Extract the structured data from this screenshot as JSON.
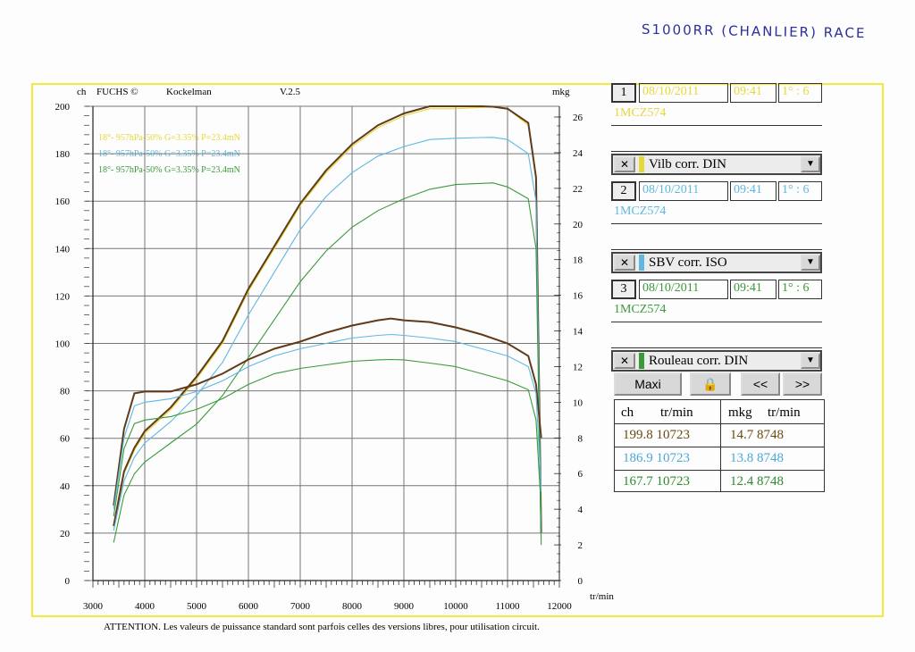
{
  "handwriting": "S1000RR (CHANLIER) RACE",
  "header": {
    "brand": "FUCHS ©",
    "author": "Kockelman",
    "version": "V.2.5",
    "left_unit": "ch",
    "right_unit": "mkg",
    "x_unit": "tr/min"
  },
  "legend": [
    {
      "text": "18°- 957hPa-50% G=3.35% P=23.4mN",
      "color": "#e6d83a"
    },
    {
      "text": "18°- 957hPa-50% G=3.35% P=23.4mN",
      "color": "#5fb8e0"
    },
    {
      "text": "18°- 957hPa-50% G=3.35% P=23.4mN",
      "color": "#3a9a3a"
    }
  ],
  "footer": "ATTENTION. Les valeurs de puissance standard sont parfois celles des versions libres, pour utilisation circuit.",
  "runs": [
    {
      "num": "1",
      "date": "08/10/2011",
      "time": "09:41",
      "ratio": "1° : 6",
      "plate": "1MCZ574",
      "mode": "Vilb corr. DIN",
      "color": "#e6d83a"
    },
    {
      "num": "2",
      "date": "08/10/2011",
      "time": "09:41",
      "ratio": "1° : 6",
      "plate": "1MCZ574",
      "mode": "SBV corr. ISO",
      "color": "#5fb8e0"
    },
    {
      "num": "3",
      "date": "08/10/2011",
      "time": "09:41",
      "ratio": "1° : 6",
      "plate": "1MCZ574",
      "mode": "Rouleau corr. DIN",
      "color": "#3a9a3a"
    }
  ],
  "buttons": {
    "maxi": "Maxi",
    "prev": "<<",
    "next": ">>"
  },
  "results": {
    "headers": [
      "ch",
      "tr/min",
      "mkg",
      "tr/min"
    ],
    "rows": [
      {
        "ch": "199.8",
        "rpm1": "10723",
        "mkg": "14.7",
        "rpm2": "8748",
        "color": "#6b4a10"
      },
      {
        "ch": "186.9",
        "rpm1": "10723",
        "mkg": "13.8",
        "rpm2": "8748",
        "color": "#4aa8d8"
      },
      {
        "ch": "167.7",
        "rpm1": "10723",
        "mkg": "12.4",
        "rpm2": "8748",
        "color": "#2e8a2e"
      }
    ]
  },
  "chart_data": {
    "type": "line",
    "x_ticks": [
      "3000",
      "4000",
      "5000",
      "6000",
      "7000",
      "8000",
      "9000",
      "10000",
      "11000",
      "12000"
    ],
    "y_left_ticks": [
      "0",
      "20",
      "40",
      "60",
      "80",
      "100",
      "120",
      "140",
      "160",
      "180",
      "200"
    ],
    "y_right_ticks": [
      "0",
      "2",
      "4",
      "6",
      "8",
      "10",
      "12",
      "14",
      "16",
      "18",
      "20",
      "22",
      "24",
      "26"
    ],
    "xlim": [
      3000,
      12000
    ],
    "ylim_power": [
      0,
      200
    ],
    "ylim_torque": [
      0,
      26
    ],
    "grid": true,
    "series": [
      {
        "axis": "power",
        "color": "#e6d83a",
        "x": [
          3400,
          3600,
          3800,
          4000,
          4500,
          5000,
          5500,
          6000,
          6500,
          7000,
          7500,
          8000,
          8500,
          9000,
          9500,
          10000,
          10500,
          10723,
          11000,
          11400,
          11550,
          11650
        ],
        "y": [
          22,
          45,
          55,
          62,
          72,
          85,
          100,
          122,
          140,
          158,
          172,
          183,
          191,
          196,
          199,
          199,
          199.5,
          199.8,
          199,
          192,
          170,
          20
        ]
      },
      {
        "axis": "power",
        "color": "#5f3b1a",
        "x": [
          3400,
          3600,
          3800,
          4000,
          4500,
          5000,
          5500,
          6000,
          6500,
          7000,
          7500,
          8000,
          8500,
          9000,
          9500,
          10000,
          10500,
          10723,
          11000,
          11400,
          11550,
          11650
        ],
        "y": [
          23,
          46,
          56,
          63,
          73,
          86,
          101,
          123,
          141,
          159,
          173,
          184,
          192,
          197,
          200,
          200,
          200,
          199.8,
          199,
          193,
          170,
          20
        ]
      },
      {
        "axis": "power",
        "color": "#5fb8e0",
        "x": [
          3400,
          3600,
          3800,
          4000,
          4500,
          5000,
          5500,
          6000,
          6500,
          7000,
          7500,
          8000,
          8500,
          9000,
          9500,
          10000,
          10500,
          10723,
          11000,
          11400,
          11550,
          11650
        ],
        "y": [
          21,
          42,
          52,
          58,
          67,
          78,
          92,
          112,
          130,
          148,
          162,
          172,
          179,
          183,
          186,
          186.5,
          186.8,
          186.9,
          186,
          180,
          160,
          20
        ]
      },
      {
        "axis": "power",
        "color": "#3a9a3a",
        "x": [
          3400,
          3600,
          3800,
          4000,
          4500,
          5000,
          5500,
          6000,
          6500,
          7000,
          7500,
          8000,
          8500,
          9000,
          9500,
          10000,
          10500,
          10723,
          11000,
          11400,
          11550,
          11650
        ],
        "y": [
          16,
          36,
          45,
          50,
          58,
          66,
          78,
          94,
          110,
          126,
          139,
          149,
          156,
          161,
          165,
          167,
          167.5,
          167.7,
          166,
          161,
          140,
          15
        ]
      },
      {
        "axis": "torque",
        "color": "#5f3b1a",
        "x": [
          3400,
          3600,
          3800,
          4000,
          4500,
          5000,
          5500,
          6000,
          6500,
          7000,
          7500,
          8000,
          8500,
          8748,
          9000,
          9500,
          10000,
          10500,
          11000,
          11400,
          11550,
          11650
        ],
        "y": [
          4.2,
          8.5,
          10.5,
          10.6,
          10.6,
          11.0,
          11.6,
          12.4,
          13.0,
          13.4,
          13.9,
          14.3,
          14.6,
          14.7,
          14.6,
          14.5,
          14.2,
          13.8,
          13.3,
          12.6,
          11.0,
          8.0
        ]
      },
      {
        "axis": "torque",
        "color": "#5fb8e0",
        "x": [
          3400,
          3600,
          3800,
          4000,
          4500,
          5000,
          5500,
          6000,
          6500,
          7000,
          7500,
          8000,
          8500,
          8748,
          9000,
          9500,
          10000,
          10500,
          11000,
          11400,
          11550,
          11650
        ],
        "y": [
          4.0,
          8.0,
          9.8,
          10.0,
          10.2,
          10.6,
          11.2,
          12.0,
          12.6,
          13.0,
          13.3,
          13.6,
          13.75,
          13.8,
          13.75,
          13.6,
          13.4,
          13.0,
          12.6,
          12.0,
          10.5,
          5.0
        ]
      },
      {
        "axis": "torque",
        "color": "#3a9a3a",
        "x": [
          3400,
          3600,
          3800,
          4000,
          4500,
          5000,
          5500,
          6000,
          6500,
          7000,
          7500,
          8000,
          8500,
          8748,
          9000,
          9500,
          10000,
          10500,
          11000,
          11400,
          11550,
          11650
        ],
        "y": [
          3.6,
          7.4,
          8.8,
          9.0,
          9.2,
          9.6,
          10.2,
          11.0,
          11.6,
          11.9,
          12.1,
          12.3,
          12.38,
          12.4,
          12.38,
          12.2,
          12.0,
          11.6,
          11.2,
          10.7,
          9.0,
          4.0
        ]
      }
    ]
  }
}
